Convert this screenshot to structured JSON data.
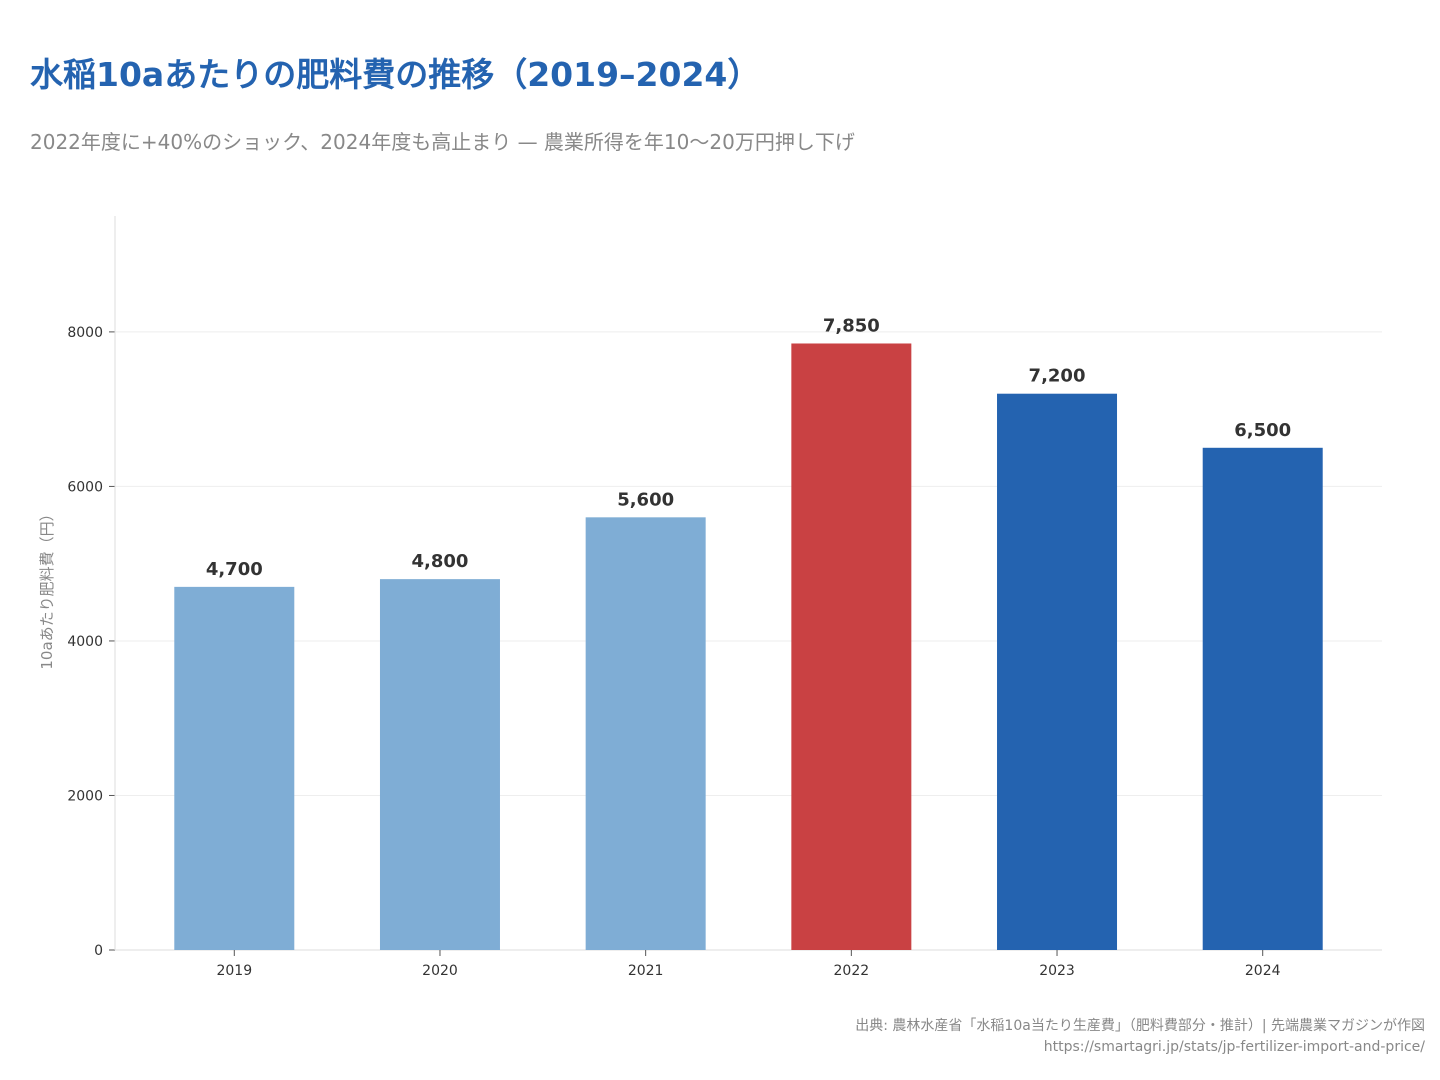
{
  "title": "水稲10aあたりの肥料費の推移（2019–2024）",
  "subtitle": "2022年度に+40%のショック、2024年度も高止まり — 農業所得を年10〜20万円押し下げ",
  "source": "出典: 農林水産省「水稲10a当たり生産費」（肥料費部分・推計）| 先端農業マガジンが作図",
  "url": "https://smartagri.jp/stats/jp-fertilizer-import-and-price/",
  "chart_data": {
    "type": "bar",
    "categories": [
      "2019",
      "2020",
      "2021",
      "2022",
      "2023",
      "2024"
    ],
    "values": [
      4700,
      4800,
      5600,
      7850,
      7200,
      6500
    ],
    "data_labels": [
      "4,700",
      "4,800",
      "5,600",
      "7,850",
      "7,200",
      "6,500"
    ],
    "colors": [
      "#7fadd5",
      "#7fadd5",
      "#7fadd5",
      "#c94143",
      "#2463b0",
      "#2463b0"
    ],
    "ylabel": "10aあたり肥料費（円）",
    "xlabel": "",
    "ylim": [
      0,
      9500
    ],
    "yticks": [
      0,
      2000,
      4000,
      6000,
      8000
    ],
    "grid": "horizontal"
  }
}
